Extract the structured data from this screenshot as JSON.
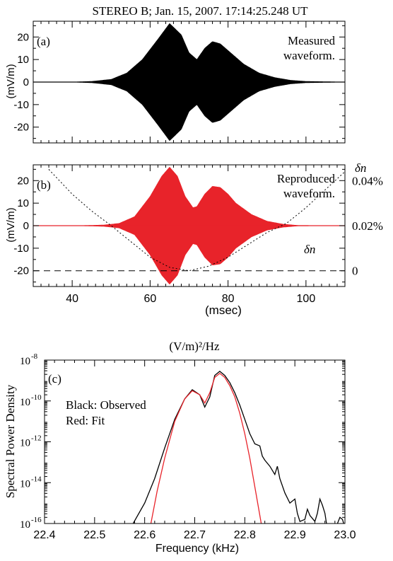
{
  "figure_title": "STEREO B; Jan. 15, 2007. 17:14:25.248 UT",
  "chart_data": [
    {
      "panel": "(a)",
      "type": "line",
      "annotation": [
        "Measured",
        "waveform."
      ],
      "ylabel": "(mV/m)",
      "xlim": [
        30,
        110
      ],
      "ylim": [
        -27,
        27
      ],
      "yticks": [
        20,
        10,
        0,
        -10,
        -20
      ],
      "xticks": [
        40,
        60,
        80,
        100
      ],
      "show_xticklabels": false,
      "color": "#000000",
      "envelope": {
        "x": [
          30,
          40,
          45,
          50,
          54,
          58,
          62,
          65,
          68,
          70,
          72,
          74,
          76,
          78,
          80,
          84,
          88,
          92,
          96,
          100,
          110
        ],
        "amplitude": [
          0,
          0,
          0.3,
          1.2,
          4,
          10,
          19,
          26,
          21,
          13,
          10,
          15,
          18,
          17,
          14,
          8,
          4,
          2,
          0.8,
          0.3,
          0
        ]
      }
    },
    {
      "panel": "(b)",
      "type": "line",
      "annotation": [
        "Reproduced",
        "waveform."
      ],
      "ylabel": "(mV/m)",
      "xlabel": "(msec)",
      "xlim": [
        30,
        110
      ],
      "ylim": [
        -27,
        27
      ],
      "yticks": [
        20,
        10,
        0,
        -10,
        -20
      ],
      "xticks": [
        40,
        60,
        80,
        100
      ],
      "color": "#e8232a",
      "envelope": {
        "x": [
          30,
          40,
          44,
          48,
          52,
          56,
          60,
          63,
          65,
          67,
          69,
          71,
          72,
          74,
          76,
          78,
          80,
          82,
          86,
          90,
          94,
          98,
          110
        ],
        "amplitude": [
          0,
          0,
          0.1,
          0.3,
          1,
          4,
          13,
          22,
          26,
          22,
          13,
          8,
          8.5,
          14,
          17.5,
          17,
          14,
          10,
          5,
          2,
          0.7,
          0.1,
          0
        ]
      },
      "right_axis": {
        "label": "δn",
        "ticks": [
          {
            "value": "0.04%",
            "y": 20
          },
          {
            "value": "0.02%",
            "y": 0
          },
          {
            "value": "0",
            "y": -20
          }
        ]
      },
      "dn_curve": {
        "label": "δn",
        "x": [
          34,
          40,
          45,
          50,
          55,
          60,
          65,
          70,
          75,
          80,
          85,
          90,
          95,
          100,
          105,
          110
        ],
        "y": [
          25,
          14,
          6.5,
          0,
          -7,
          -14,
          -18.5,
          -20,
          -18,
          -14,
          -8.5,
          -3,
          1,
          8,
          16,
          24
        ]
      },
      "baseline_zero_dn": -20
    },
    {
      "panel": "(c)",
      "type": "line",
      "title": "(V/m)²/Hz",
      "ylabel": "Spectral Power Density",
      "xlabel": "Frequency (kHz)",
      "xlim": [
        22.4,
        23.0
      ],
      "xticks": [
        22.4,
        22.5,
        22.6,
        22.7,
        22.8,
        22.9,
        23.0
      ],
      "xticklabels": [
        "22.4",
        "22.5",
        "22.6",
        "22.7",
        "22.8",
        "22.9",
        "23.0"
      ],
      "yscale": "log",
      "ylim_exp": [
        -16,
        -8
      ],
      "yticks_exp": [
        -8,
        -10,
        -12,
        -14,
        -16
      ],
      "yticklabels": [
        "10",
        "10",
        "10",
        "10",
        "10"
      ],
      "ytickexponents": [
        "-8",
        "-10",
        "-12",
        "-14",
        "-16"
      ],
      "legend_text": [
        "Black: Observed",
        "Red: Fit"
      ],
      "series": [
        {
          "name": "Observed",
          "color": "#000000",
          "x": [
            22.57,
            22.6,
            22.62,
            22.64,
            22.66,
            22.68,
            22.695,
            22.71,
            22.72,
            22.73,
            22.74,
            22.75,
            22.76,
            22.77,
            22.78,
            22.79,
            22.8,
            22.81,
            22.82,
            22.83,
            22.835,
            22.84,
            22.85,
            22.86,
            22.865,
            22.87,
            22.88,
            22.89,
            22.9,
            22.905,
            22.91,
            22.92,
            22.925,
            22.93,
            22.94,
            22.945,
            22.95,
            22.955,
            22.96,
            22.965,
            22.97,
            22.975,
            22.98,
            22.985,
            22.99,
            22.995,
            23.0
          ],
          "y_exp": [
            -16.3,
            -15,
            -13.8,
            -12.3,
            -10.9,
            -9.9,
            -9.45,
            -9.7,
            -10.3,
            -9.8,
            -8.75,
            -8.55,
            -8.75,
            -9.1,
            -9.6,
            -10.2,
            -10.9,
            -11.6,
            -12.1,
            -12.2,
            -12.7,
            -12.9,
            -13.2,
            -13.6,
            -13.2,
            -13.8,
            -14.5,
            -15.0,
            -14.8,
            -15.5,
            -15.9,
            -15.8,
            -15.3,
            -15.6,
            -15.9,
            -15.5,
            -14.8,
            -15.1,
            -15.5,
            -16.3,
            -16.2,
            -16.2,
            -16.3,
            -16.0,
            -15.7,
            -15.8,
            -16.2
          ]
        },
        {
          "name": "Fit",
          "color": "#e8232a",
          "x": [
            22.61,
            22.625,
            22.64,
            22.66,
            22.68,
            22.695,
            22.71,
            22.72,
            22.73,
            22.74,
            22.75,
            22.76,
            22.77,
            22.78,
            22.79,
            22.8,
            22.81,
            22.82,
            22.83,
            22.835
          ],
          "y_exp": [
            -16.3,
            -14.4,
            -12.8,
            -11.0,
            -9.9,
            -9.5,
            -9.7,
            -10.1,
            -9.6,
            -8.85,
            -8.65,
            -8.85,
            -9.25,
            -9.8,
            -10.6,
            -11.6,
            -12.8,
            -14.2,
            -15.6,
            -16.3
          ]
        }
      ]
    }
  ]
}
